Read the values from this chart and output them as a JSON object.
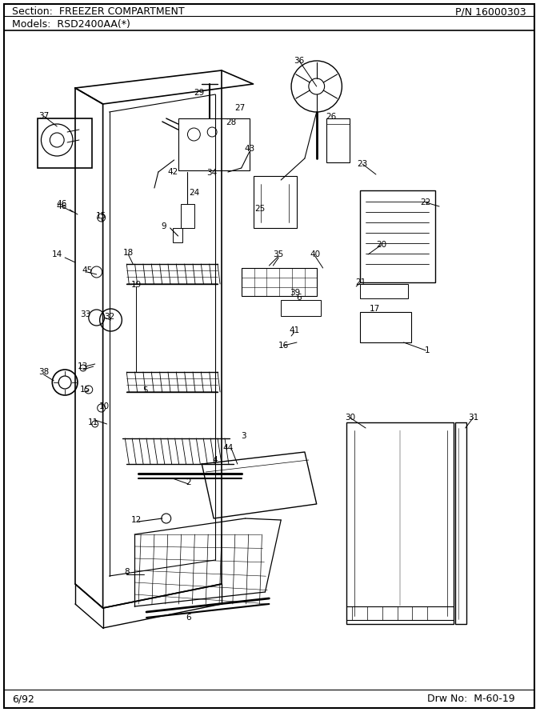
{
  "title_section": "Section:  FREEZER COMPARTMENT",
  "title_pn": "P/N 16000303",
  "title_models": "Models:  RSD2400AA(*)",
  "footer_left": "6/92",
  "footer_right": "Drw No:  M-60-19",
  "bg_color": "#ffffff",
  "border_color": "#000000",
  "line_color": "#000000",
  "fig_width": 6.8,
  "fig_height": 8.9,
  "dpi": 100
}
